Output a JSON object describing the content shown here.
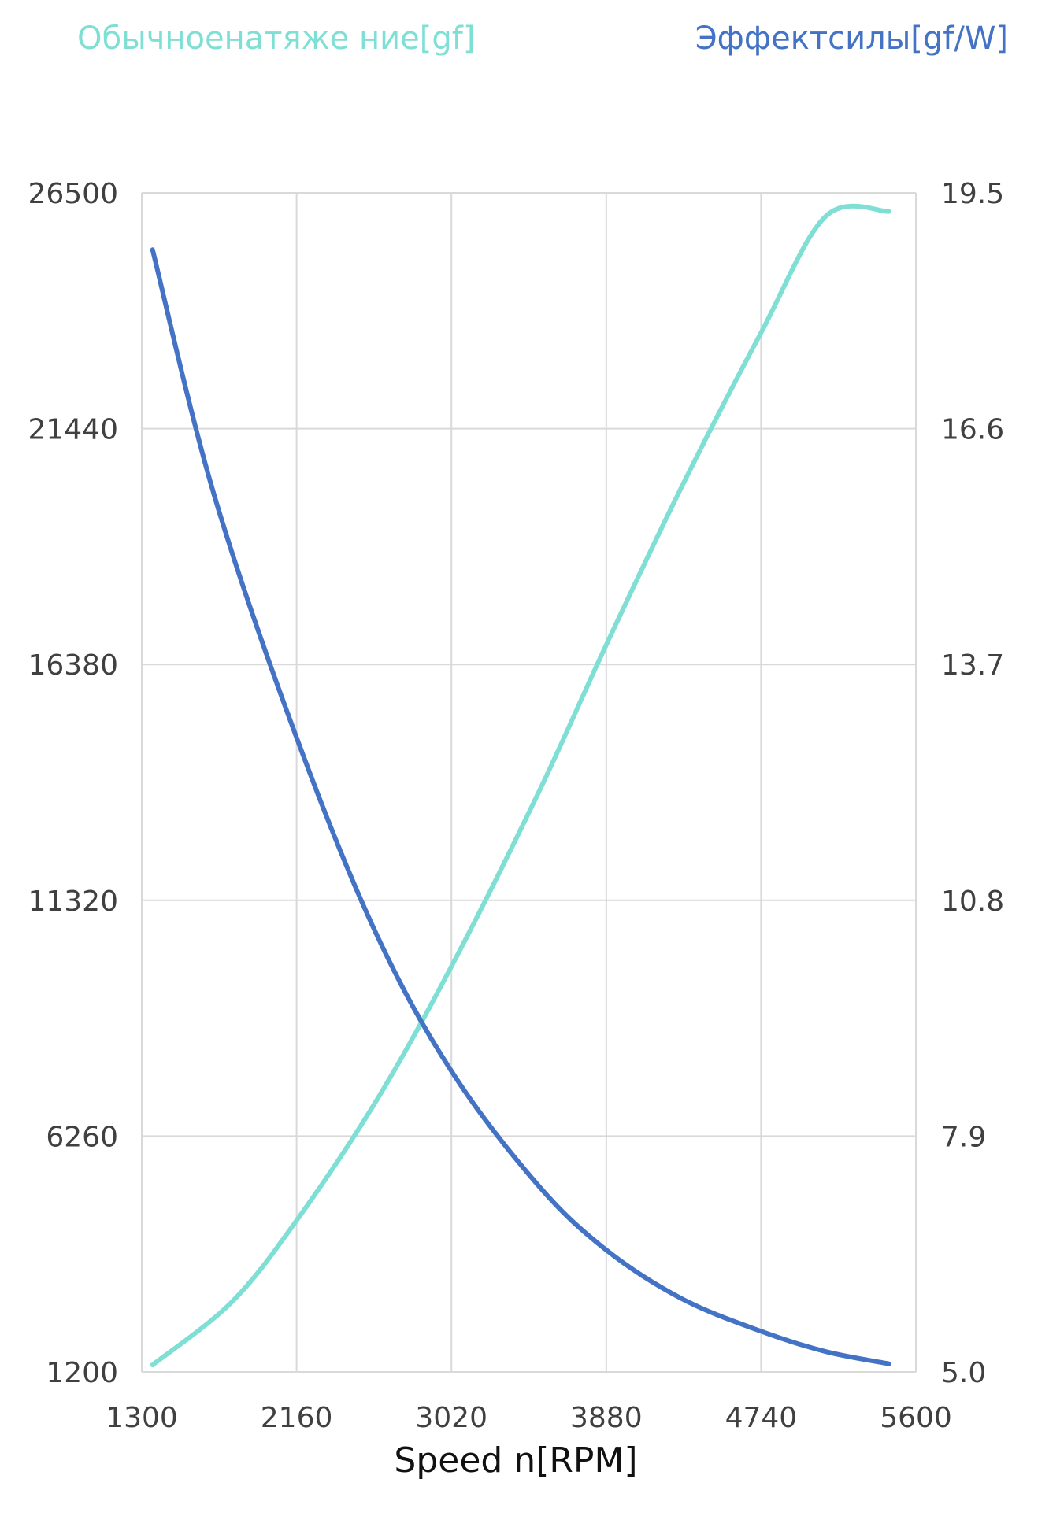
{
  "chart_data": {
    "type": "line",
    "series": [
      {
        "name": "Обычноенатяже ние[gf]",
        "axis": "left",
        "color": "#7fdfd4",
        "x": [
          1360,
          1800,
          2160,
          2600,
          3020,
          3500,
          3880,
          4300,
          4740,
          5100,
          5450
        ],
        "values": [
          1350,
          2700,
          4450,
          7000,
          9900,
          13600,
          16800,
          20200,
          23500,
          26000,
          26100
        ]
      },
      {
        "name": "Эффектсилы[gf/W]",
        "axis": "right",
        "color": "#4472c4",
        "x": [
          1360,
          1700,
          2160,
          2600,
          3020,
          3500,
          3880,
          4300,
          4740,
          5100,
          5450
        ],
        "values": [
          18.8,
          15.8,
          12.8,
          10.4,
          8.7,
          7.3,
          6.5,
          5.9,
          5.5,
          5.25,
          5.1
        ]
      }
    ],
    "xlabel": "Speed n[RPM]",
    "x_ticks": [
      "1300",
      "2160",
      "3020",
      "3880",
      "4740",
      "5600"
    ],
    "xlim": [
      1300,
      5600
    ],
    "y_left_ticks": [
      "26500",
      "21440",
      "16380",
      "11320",
      "6260",
      "1200"
    ],
    "ylim_left": [
      1200,
      26500
    ],
    "y_right_ticks": [
      "19.5",
      "16.6",
      "13.7",
      "10.8",
      "7.9",
      "5.0"
    ],
    "ylim_right": [
      5.0,
      19.5
    ],
    "grid": true,
    "legend_position": "top"
  }
}
